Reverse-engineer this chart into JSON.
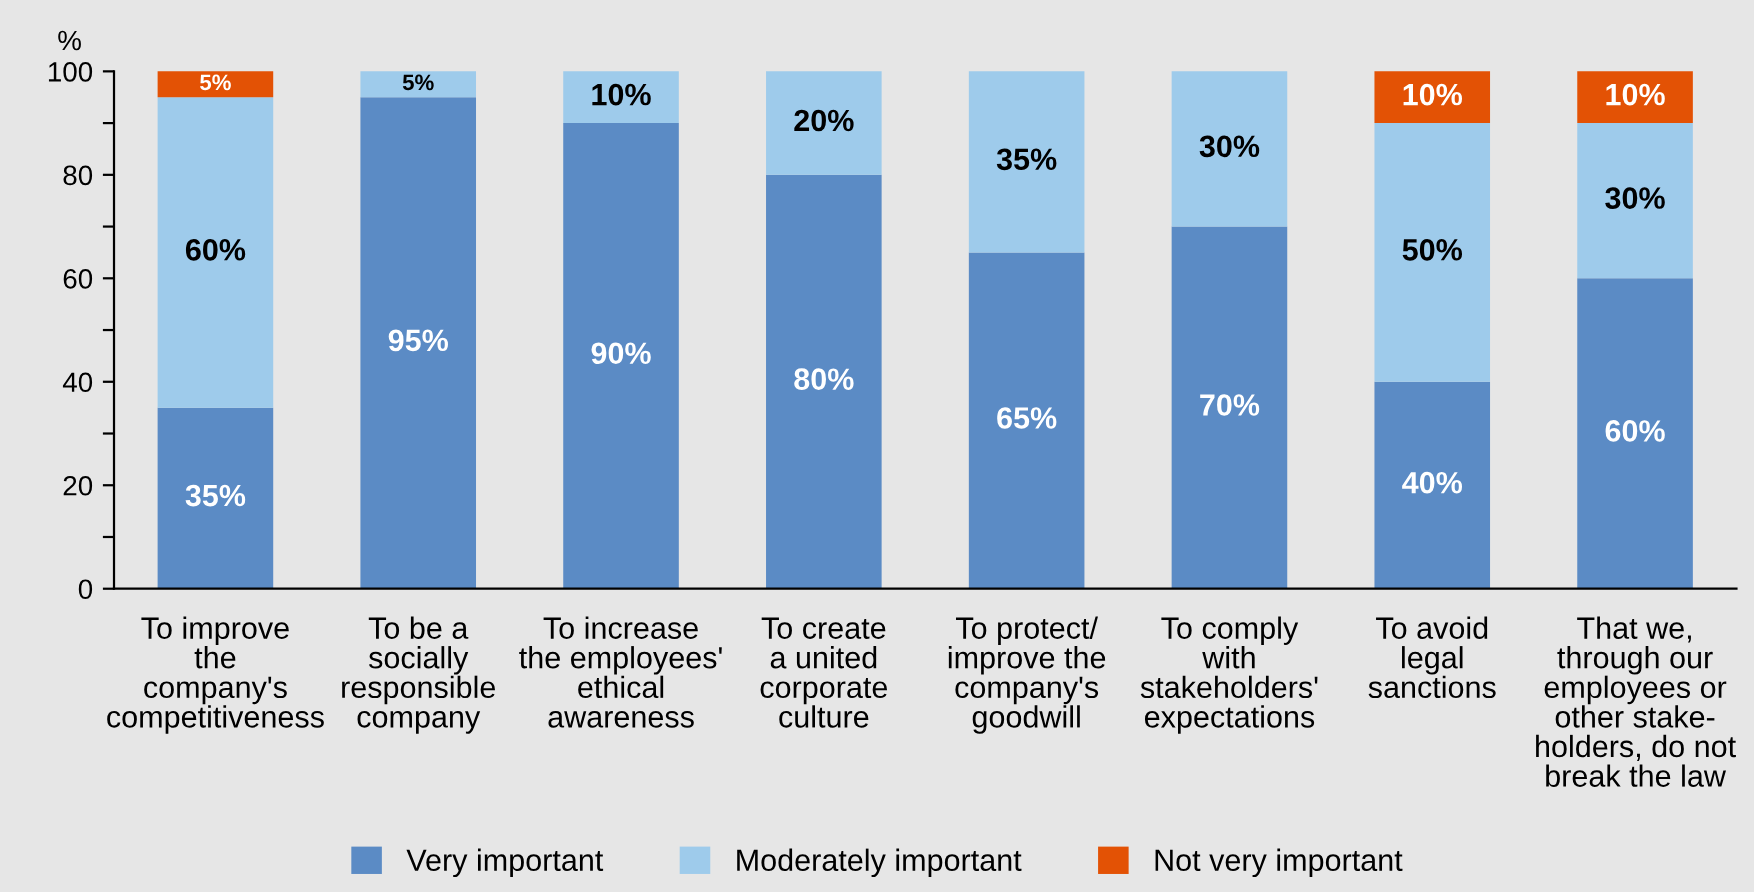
{
  "chart_data": {
    "type": "bar",
    "stacked": true,
    "ylabel": "%",
    "categories": [
      "To improve\nthe\ncompany's\ncompetitiveness",
      "To be a\nsocially\nresponsible\ncompany",
      "To increase\nthe employees'\nethical\nawareness",
      "To create\na united\ncorporate\nculture",
      "To protect/\nimprove the\ncompany's\ngoodwill",
      "To comply\nwith\nstakeholders'\nexpectations",
      "To avoid\nlegal\nsanctions",
      "That we,\nthrough our\nemployees or\nother stake-\nholders, do not\nbreak the law"
    ],
    "series": [
      {
        "name": "Very important",
        "color": "#5b8bc5",
        "values": [
          35,
          95,
          90,
          80,
          65,
          70,
          40,
          60
        ],
        "value_labels": [
          "35%",
          "95%",
          "90%",
          "80%",
          "65%",
          "70%",
          "40%",
          "60%"
        ]
      },
      {
        "name": "Moderately important",
        "color": "#9ecbeb",
        "values": [
          60,
          5,
          10,
          20,
          35,
          30,
          50,
          30
        ],
        "value_labels": [
          "60%",
          "5%",
          "10%",
          "20%",
          "35%",
          "30%",
          "50%",
          "30%"
        ]
      },
      {
        "name": "Not very important",
        "color": "#e35205",
        "values": [
          5,
          null,
          null,
          null,
          null,
          null,
          10,
          10
        ],
        "value_labels": [
          "5%",
          null,
          null,
          null,
          null,
          null,
          "10%",
          "10%"
        ]
      }
    ],
    "ylim": [
      0,
      100
    ],
    "yticks": [
      0,
      {
        "value": 10,
        "label": null
      },
      20,
      {
        "value": 30,
        "label": null
      },
      40,
      {
        "value": 50,
        "label": null
      },
      60,
      {
        "value": 70,
        "label": null
      },
      80,
      {
        "value": 90,
        "label": null
      },
      100
    ],
    "grid": false,
    "legend": "bottom"
  }
}
